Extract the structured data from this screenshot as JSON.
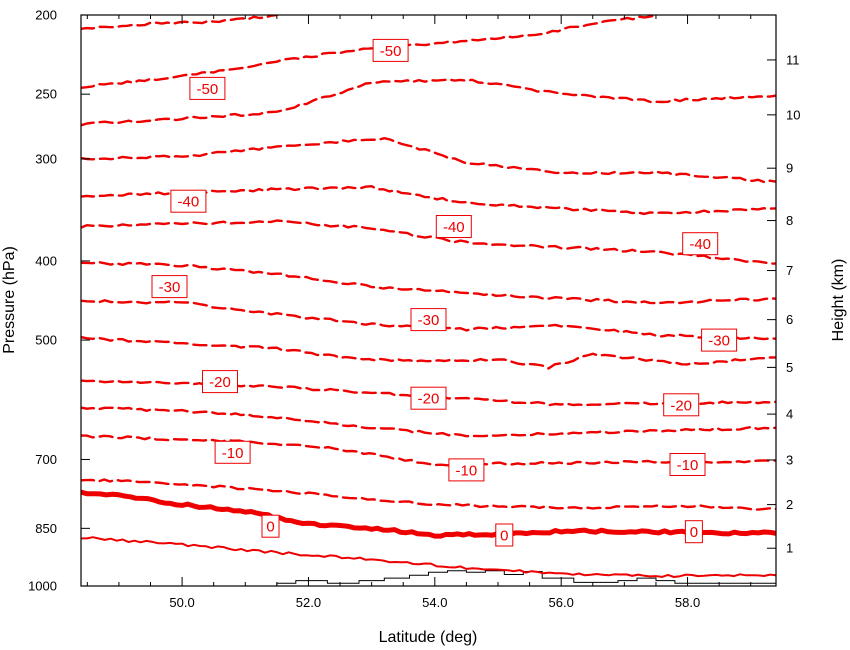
{
  "chart_data": {
    "type": "line",
    "title": "",
    "xlabel": "Latitude (deg)",
    "ylabel": "Pressure (hPa)",
    "y2label": "Height (km)",
    "xlim": [
      48.4,
      59.4
    ],
    "ylim": [
      1000,
      200
    ],
    "x_ticks": [
      50.0,
      52.0,
      54.0,
      56.0,
      58.0
    ],
    "x_tick_labels": [
      "50.0",
      "52.0",
      "54.0",
      "56.0",
      "58.0"
    ],
    "y_ticks": [
      1000,
      850,
      700,
      500,
      400,
      300,
      250,
      200
    ],
    "y_tick_labels": [
      "1000",
      "850",
      "700",
      "500",
      "400",
      "300",
      "250",
      "200"
    ],
    "y2_ticks": [
      1,
      2,
      3,
      4,
      5,
      6,
      7,
      8,
      9,
      10,
      11
    ],
    "y2_tick_labels": [
      "1",
      "2",
      "3",
      "4",
      "5",
      "6",
      "7",
      "8",
      "9",
      "10",
      "11"
    ],
    "y2_tick_pressure": [
      899,
      795,
      701,
      616,
      540,
      472,
      411,
      357,
      308,
      265,
      227
    ],
    "style": {
      "line_color": "#ee0000",
      "terrain_color": "#000000",
      "zero_line": "thick solid",
      "negative_lines": "dashed",
      "positive_lines": "solid"
    },
    "contour_labels": [
      {
        "text": "-50",
        "x": 53.3,
        "p": 221
      },
      {
        "text": "-50",
        "x": 50.4,
        "p": 246
      },
      {
        "text": "-40",
        "x": 50.1,
        "p": 338
      },
      {
        "text": "-40",
        "x": 54.3,
        "p": 363
      },
      {
        "text": "-40",
        "x": 58.2,
        "p": 381
      },
      {
        "text": "-30",
        "x": 49.8,
        "p": 430
      },
      {
        "text": "-30",
        "x": 53.9,
        "p": 472
      },
      {
        "text": "-30",
        "x": 58.5,
        "p": 500
      },
      {
        "text": "-20",
        "x": 50.6,
        "p": 562
      },
      {
        "text": "-20",
        "x": 53.9,
        "p": 589
      },
      {
        "text": "-20",
        "x": 57.9,
        "p": 600
      },
      {
        "text": "-10",
        "x": 50.8,
        "p": 686
      },
      {
        "text": "-10",
        "x": 54.5,
        "p": 721
      },
      {
        "text": "-10",
        "x": 58.0,
        "p": 710
      },
      {
        "text": "0",
        "x": 51.4,
        "p": 845
      },
      {
        "text": "0",
        "x": 55.1,
        "p": 866
      },
      {
        "text": "0",
        "x": 58.1,
        "p": 858
      }
    ],
    "series": [
      {
        "level": 5,
        "x": [
          48.4,
          50,
          51.5,
          53,
          54.5,
          56,
          57.5,
          59.4
        ],
        "p": [
          872,
          890,
          910,
          928,
          950,
          966,
          972,
          970
        ]
      },
      {
        "level": 0,
        "x": [
          48.4,
          49,
          50,
          51,
          52,
          53,
          54,
          55,
          56,
          57,
          58,
          59.4
        ],
        "p": [
          770,
          775,
          795,
          810,
          840,
          850,
          866,
          865,
          857,
          857,
          860,
          862
        ]
      },
      {
        "level": -5,
        "x": [
          48.4,
          49.5,
          50.5,
          52,
          53.5,
          55,
          56.5,
          58,
          59.4
        ],
        "p": [
          742,
          745,
          755,
          770,
          790,
          800,
          802,
          798,
          805
        ]
      },
      {
        "level": -10,
        "x": [
          48.4,
          49.5,
          51,
          52.5,
          54,
          55.5,
          57,
          58.5,
          59.4
        ],
        "p": [
          655,
          660,
          665,
          680,
          710,
          708,
          705,
          705,
          702
        ]
      },
      {
        "level": -15,
        "x": [
          48.4,
          50,
          51.5,
          53,
          54.5,
          56,
          57.5,
          59.4
        ],
        "p": [
          605,
          610,
          622,
          640,
          655,
          650,
          645,
          640
        ]
      },
      {
        "level": -20,
        "x": [
          48.4,
          50,
          51.5,
          53,
          54.5,
          56,
          57.5,
          59.4
        ],
        "p": [
          560,
          565,
          570,
          580,
          590,
          600,
          598,
          595
        ]
      },
      {
        "level": -25,
        "x": [
          48.4,
          50,
          51.5,
          52.5,
          53.5,
          55,
          55.8,
          56.5,
          58,
          59.4
        ],
        "p": [
          497,
          505,
          512,
          525,
          530,
          528,
          540,
          520,
          535,
          525
        ]
      },
      {
        "level": -30,
        "x": [
          48.4,
          50,
          51.5,
          53,
          54.5,
          56,
          57.5,
          59.4
        ],
        "p": [
          448,
          450,
          465,
          478,
          485,
          480,
          493,
          498
        ]
      },
      {
        "level": -35,
        "x": [
          48.4,
          50,
          51.5,
          53,
          54.5,
          56,
          57.5,
          59.4
        ],
        "p": [
          402,
          405,
          415,
          430,
          438,
          445,
          450,
          445
        ]
      },
      {
        "level": -40,
        "x": [
          48.4,
          50,
          51.5,
          53,
          54.5,
          56,
          57.5,
          59.4
        ],
        "p": [
          363,
          360,
          358,
          365,
          380,
          385,
          390,
          403
        ]
      },
      {
        "level": -45,
        "x": [
          48.4,
          50,
          51.5,
          53,
          54.5,
          56,
          57.5,
          59.4
        ],
        "p": [
          333,
          330,
          327,
          325,
          340,
          345,
          350,
          345
        ]
      },
      {
        "level": -50,
        "x": [
          48.4,
          50,
          51.5,
          53.2,
          54.5,
          56,
          57.5,
          59.4
        ],
        "p": [
          300,
          298,
          290,
          283,
          303,
          312,
          312,
          320
        ]
      },
      {
        "level": -55,
        "x": [
          48.4,
          50,
          51.5,
          53,
          54.5,
          56,
          57.5,
          59.4
        ],
        "p": [
          272,
          268,
          263,
          242,
          240,
          250,
          255,
          251
        ]
      },
      {
        "level": -60,
        "x": [
          48.4,
          49.5,
          50.5,
          51.5,
          52.5,
          53.5,
          54.5,
          55.5,
          56.5,
          57.5
        ],
        "p": [
          245,
          240,
          235,
          228,
          222,
          218,
          215,
          212,
          205,
          200
        ]
      },
      {
        "level": -65,
        "x": [
          48.4,
          49.5,
          50.5,
          51.5
        ],
        "p": [
          208,
          205,
          204,
          200
        ]
      }
    ],
    "terrain": {
      "x": [
        48.4,
        51.2,
        51.5,
        51.8,
        52.3,
        52.8,
        53.2,
        53.6,
        53.9,
        54.2,
        54.5,
        54.8,
        55.1,
        55.4,
        55.7,
        56.2,
        56.9,
        57.2,
        57.5,
        57.8,
        59.4
      ],
      "p": [
        1000,
        1000,
        992,
        985,
        992,
        985,
        978,
        970,
        962,
        958,
        962,
        958,
        968,
        960,
        978,
        990,
        985,
        978,
        985,
        992,
        995
      ]
    }
  }
}
